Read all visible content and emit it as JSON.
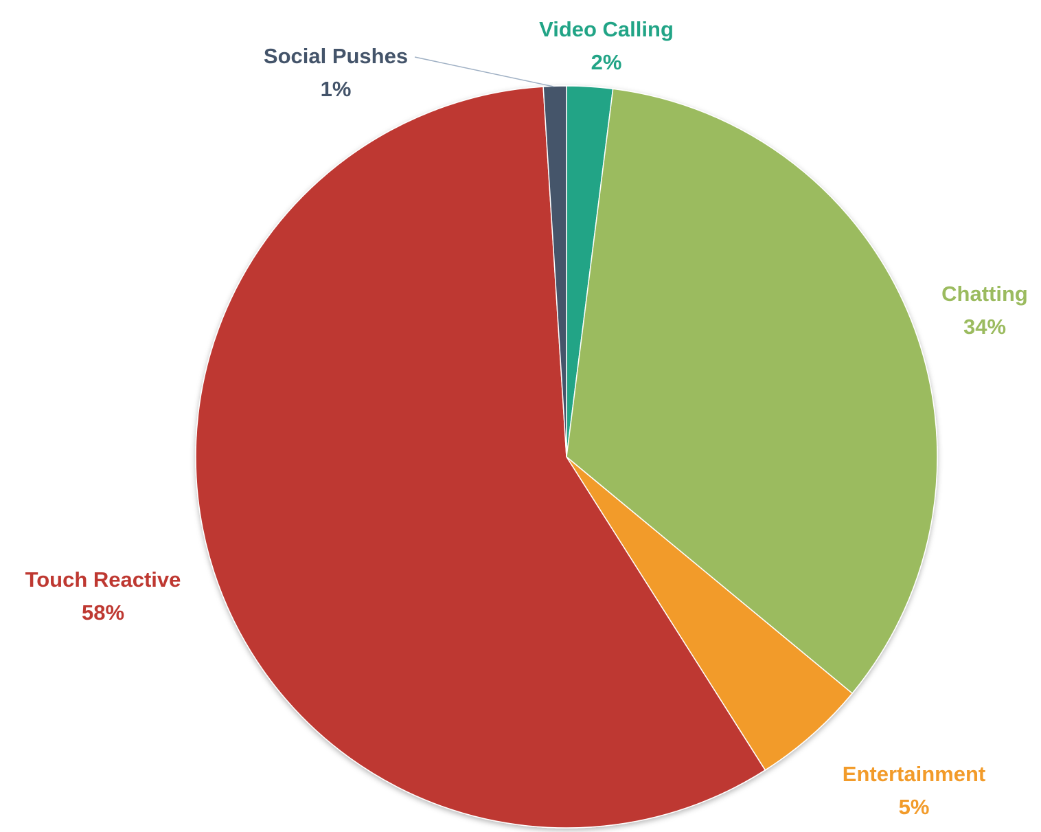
{
  "chart_data": {
    "type": "pie",
    "title": "",
    "start_angle_deg": 0,
    "direction": "clockwise",
    "slices": [
      {
        "label": "Video Calling",
        "value": 2,
        "display": "2%",
        "color": "#21A486"
      },
      {
        "label": "Chatting",
        "value": 34,
        "display": "34%",
        "color": "#9BBB5F"
      },
      {
        "label": "Entertainment",
        "value": 5,
        "display": "5%",
        "color": "#F29B2A"
      },
      {
        "label": "Touch Reactive",
        "value": 58,
        "display": "58%",
        "color": "#BE3831"
      },
      {
        "label": "Social Pushes",
        "value": 1,
        "display": "1%",
        "color": "#44546A"
      }
    ],
    "legend": "none",
    "data_labels": "outside"
  }
}
